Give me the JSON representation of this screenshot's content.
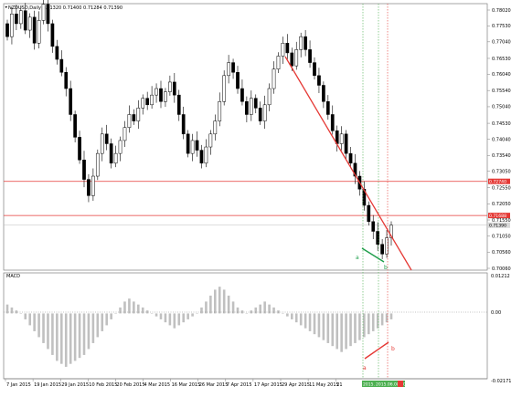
{
  "header": {
    "symbol_line": "NZDUSD,Daily  0.71320 0.71400 0.71284 0.71390"
  },
  "price_axis": {
    "ticks": [
      "0.78020",
      "0.77530",
      "0.77040",
      "0.76530",
      "0.76040",
      "0.75540",
      "0.75040",
      "0.74530",
      "0.74040",
      "0.73540",
      "0.73050",
      "0.72550",
      "0.72050",
      "0.71550",
      "0.71050",
      "0.70560",
      "0.70060"
    ],
    "tick_values": [
      0.7802,
      0.7753,
      0.7704,
      0.7653,
      0.7604,
      0.7554,
      0.7504,
      0.7453,
      0.7404,
      0.7354,
      0.7305,
      0.7255,
      0.7205,
      0.7155,
      0.7105,
      0.7056,
      0.7006
    ],
    "badges": [
      {
        "text": "0.72740",
        "value": 0.7274,
        "color": "#e53935"
      },
      {
        "text": "0.71688",
        "value": 0.71688,
        "color": "#e53935"
      },
      {
        "text": "0.71390",
        "value": 0.7139,
        "color": "#d8d8d8"
      }
    ]
  },
  "macd": {
    "label": "MACD",
    "axis_top": "0.01212",
    "axis_zero": "0.00",
    "axis_bottom": "-0.02171"
  },
  "date_axis": {
    "labels": [
      "7 Jan 2015",
      "19 Jan 2015",
      "29 Jan 2015",
      "10 Feb 2015",
      "20 Feb 2015",
      "4 Mar 2015",
      "16 Mar 2015",
      "26 Mar 2015",
      "7 Apr 2015",
      "17 Apr 2015",
      "29 Apr 2015",
      "11 May 2015",
      "21"
    ],
    "badges": [
      "2015.6",
      "2015.06.08 00:00"
    ]
  },
  "annotations": {
    "price_a": "a",
    "price_b": "b",
    "macd_a": "a",
    "macd_b": "b"
  },
  "colors": {
    "bull": "#ffffff",
    "bear": "#000000",
    "trend": "#e53935",
    "support": "#e53935",
    "green_line": "#1e9e4a",
    "vline_green": "#4caf50",
    "vline_red": "#e53935",
    "hist": "#c0c0c0"
  },
  "chart_data": {
    "type": "candlestick",
    "closes": [
      0.772,
      0.779,
      0.776,
      0.78,
      0.774,
      0.778,
      0.77,
      0.777,
      0.782,
      0.776,
      0.769,
      0.765,
      0.761,
      0.756,
      0.748,
      0.741,
      0.734,
      0.728,
      0.723,
      0.729,
      0.736,
      0.742,
      0.739,
      0.733,
      0.736,
      0.74,
      0.744,
      0.748,
      0.746,
      0.75,
      0.753,
      0.751,
      0.754,
      0.756,
      0.752,
      0.755,
      0.758,
      0.754,
      0.748,
      0.742,
      0.736,
      0.74,
      0.737,
      0.733,
      0.738,
      0.742,
      0.746,
      0.752,
      0.76,
      0.764,
      0.761,
      0.756,
      0.752,
      0.748,
      0.753,
      0.75,
      0.746,
      0.751,
      0.756,
      0.762,
      0.766,
      0.77,
      0.767,
      0.763,
      0.768,
      0.772,
      0.768,
      0.764,
      0.76,
      0.757,
      0.752,
      0.748,
      0.743,
      0.739,
      0.742,
      0.736,
      0.733,
      0.729,
      0.725,
      0.72,
      0.715,
      0.712,
      0.708,
      0.705,
      0.71,
      0.7139
    ],
    "macd_hist": [
      0.003,
      0.002,
      0.001,
      0.0,
      -0.002,
      -0.004,
      -0.006,
      -0.008,
      -0.01,
      -0.012,
      -0.014,
      -0.016,
      -0.017,
      -0.018,
      -0.017,
      -0.016,
      -0.015,
      -0.014,
      -0.012,
      -0.01,
      -0.008,
      -0.006,
      -0.004,
      -0.002,
      0.0,
      0.002,
      0.004,
      0.005,
      0.004,
      0.003,
      0.002,
      0.001,
      0.0,
      -0.001,
      -0.002,
      -0.003,
      -0.004,
      -0.005,
      -0.004,
      -0.003,
      -0.002,
      -0.001,
      0.0,
      0.002,
      0.004,
      0.006,
      0.008,
      0.009,
      0.008,
      0.006,
      0.004,
      0.002,
      0.001,
      0.0,
      0.001,
      0.002,
      0.003,
      0.004,
      0.003,
      0.002,
      0.001,
      0.0,
      -0.001,
      -0.002,
      -0.003,
      -0.004,
      -0.005,
      -0.006,
      -0.007,
      -0.008,
      -0.009,
      -0.01,
      -0.011,
      -0.012,
      -0.013,
      -0.012,
      -0.011,
      -0.01,
      -0.009,
      -0.008,
      -0.007,
      -0.006,
      -0.005,
      -0.004,
      -0.003,
      -0.002
    ],
    "hlines": [
      0.7274,
      0.71688,
      0.7139
    ],
    "trendline": {
      "from_index": 63,
      "from_value": 0.775,
      "to_index": 88,
      "to_value": 0.7003
    }
  }
}
